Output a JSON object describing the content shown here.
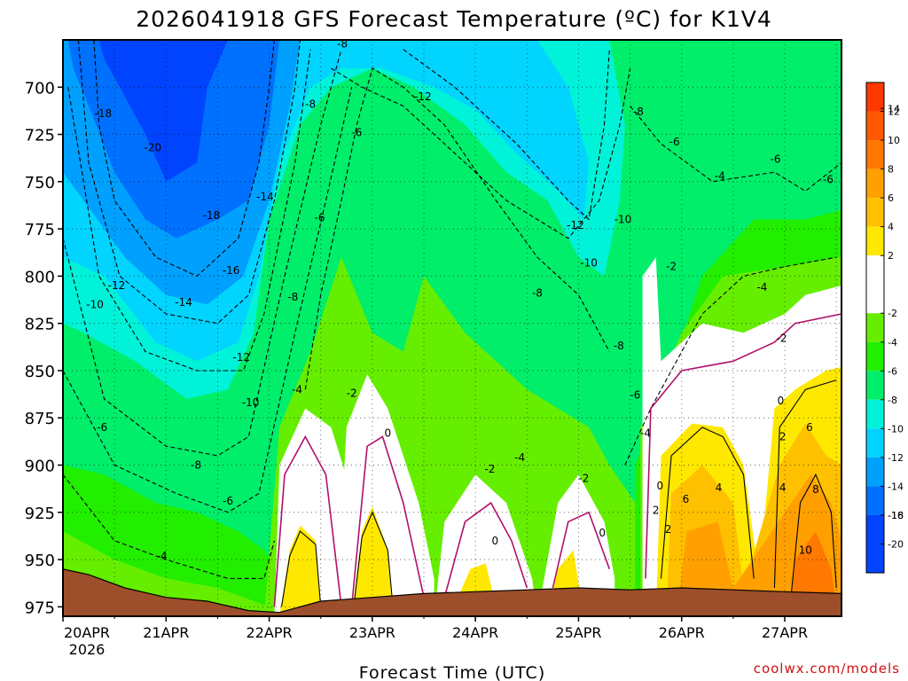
{
  "title": "2026041918 GFS Forecast Temperature (ºC) for K1V4",
  "xlabel": "Forecast Time (UTC)",
  "credit": "coolwx.com/models",
  "colors": {
    "ground": "#9c4f2a",
    "zero_contour": "#b0106a",
    "bins": [
      "#0044ff",
      "#0070ff",
      "#00a0ff",
      "#00d4ff",
      "#00f2d8",
      "#00ee6a",
      "#22ee00",
      "#66ee00",
      "#ffffff",
      "#ffe800",
      "#ffc000",
      "#ffa000",
      "#ff7800",
      "#ff5800",
      "#ff3800"
    ]
  },
  "chart_data": {
    "type": "heatmap",
    "title": "2026041918 GFS Forecast Temperature (ºC) for K1V4",
    "xlabel": "Forecast Time (UTC)",
    "ylabel": "",
    "x_ticks": [
      "20APR",
      "21APR",
      "22APR",
      "23APR",
      "24APR",
      "25APR",
      "26APR",
      "27APR"
    ],
    "x_subtick": "2026",
    "y_ticks": [
      700,
      725,
      750,
      775,
      800,
      825,
      850,
      875,
      900,
      925,
      950,
      975
    ],
    "ylim": [
      975,
      675
    ],
    "grid": true,
    "colorbar": {
      "ticks": [
        14,
        12,
        10,
        8,
        6,
        4,
        2,
        -2,
        -4,
        -6,
        -8,
        -10,
        -12,
        -14,
        -16,
        -18,
        -20
      ]
    },
    "contour_labels": [
      {
        "v": "-8",
        "t": 2.71,
        "p": 677
      },
      {
        "v": "-12",
        "t": 3.49,
        "p": 705
      },
      {
        "v": "-18",
        "t": 0.39,
        "p": 714
      },
      {
        "v": "-20",
        "t": 0.87,
        "p": 732
      },
      {
        "v": "-8",
        "t": 2.4,
        "p": 709
      },
      {
        "v": "-6",
        "t": 2.85,
        "p": 724
      },
      {
        "v": "-14",
        "t": 1.96,
        "p": 758
      },
      {
        "v": "-18",
        "t": 1.44,
        "p": 768
      },
      {
        "v": "-6",
        "t": 2.49,
        "p": 769
      },
      {
        "v": "-16",
        "t": 1.63,
        "p": 797
      },
      {
        "v": "-12",
        "t": 0.52,
        "p": 805
      },
      {
        "v": "-10",
        "t": 0.31,
        "p": 815
      },
      {
        "v": "-14",
        "t": 1.17,
        "p": 814
      },
      {
        "v": "-8",
        "t": 2.23,
        "p": 811
      },
      {
        "v": "-12",
        "t": 1.73,
        "p": 843
      },
      {
        "v": "-10",
        "t": 1.82,
        "p": 867
      },
      {
        "v": "-4",
        "t": 2.27,
        "p": 860
      },
      {
        "v": "-2",
        "t": 2.8,
        "p": 862
      },
      {
        "v": "-6",
        "t": 0.38,
        "p": 880
      },
      {
        "v": "-8",
        "t": 1.29,
        "p": 900
      },
      {
        "v": "-6",
        "t": 1.6,
        "p": 919
      },
      {
        "v": "-4",
        "t": 0.96,
        "p": 948
      },
      {
        "v": "0",
        "t": 3.15,
        "p": 883
      },
      {
        "v": "-2",
        "t": 4.14,
        "p": 902
      },
      {
        "v": "-4",
        "t": 4.43,
        "p": 896
      },
      {
        "v": "-2",
        "t": 5.05,
        "p": 907
      },
      {
        "v": "0",
        "t": 4.19,
        "p": 940
      },
      {
        "v": "0",
        "t": 5.23,
        "p": 936
      },
      {
        "v": "-10",
        "t": 5.43,
        "p": 770
      },
      {
        "v": "-12",
        "t": 4.97,
        "p": 773
      },
      {
        "v": "-10",
        "t": 5.1,
        "p": 793
      },
      {
        "v": "-8",
        "t": 4.6,
        "p": 809
      },
      {
        "v": "-8",
        "t": 5.39,
        "p": 837
      },
      {
        "v": "-6",
        "t": 5.55,
        "p": 863
      },
      {
        "v": "-4",
        "t": 5.65,
        "p": 883
      },
      {
        "v": "-8",
        "t": 5.58,
        "p": 713
      },
      {
        "v": "-6",
        "t": 5.93,
        "p": 729
      },
      {
        "v": "-4",
        "t": 6.37,
        "p": 747
      },
      {
        "v": "-6",
        "t": 6.91,
        "p": 738
      },
      {
        "v": "-6",
        "t": 7.42,
        "p": 749
      },
      {
        "v": "-2",
        "t": 5.9,
        "p": 795
      },
      {
        "v": "-4",
        "t": 6.78,
        "p": 806
      },
      {
        "v": "-2",
        "t": 6.97,
        "p": 833
      },
      {
        "v": "0",
        "t": 6.96,
        "p": 866
      },
      {
        "v": "0",
        "t": 5.79,
        "p": 911
      },
      {
        "v": "2",
        "t": 5.75,
        "p": 924
      },
      {
        "v": "2",
        "t": 5.87,
        "p": 934
      },
      {
        "v": "6",
        "t": 6.04,
        "p": 918
      },
      {
        "v": "4",
        "t": 6.36,
        "p": 912
      },
      {
        "v": "2",
        "t": 6.98,
        "p": 885
      },
      {
        "v": "6",
        "t": 7.24,
        "p": 880
      },
      {
        "v": "4",
        "t": 6.98,
        "p": 912
      },
      {
        "v": "8",
        "t": 7.3,
        "p": 913
      },
      {
        "v": "10",
        "t": 7.2,
        "p": 945
      }
    ]
  }
}
